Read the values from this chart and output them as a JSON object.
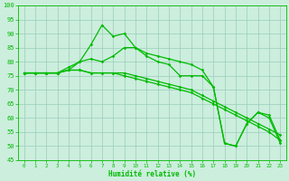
{
  "xlabel": "Humidité relative (%)",
  "background_color": "#cceedd",
  "grid_color": "#99ccbb",
  "line_color": "#00bb00",
  "xlim": [
    -0.5,
    23.5
  ],
  "ylim": [
    45,
    100
  ],
  "yticks": [
    45,
    50,
    55,
    60,
    65,
    70,
    75,
    80,
    85,
    90,
    95,
    100
  ],
  "xticks": [
    0,
    1,
    2,
    3,
    4,
    5,
    6,
    7,
    8,
    9,
    10,
    11,
    12,
    13,
    14,
    15,
    16,
    17,
    18,
    19,
    20,
    21,
    22,
    23
  ],
  "series1": [
    76,
    76,
    76,
    76,
    77,
    80,
    86,
    93,
    89,
    90,
    85,
    82,
    80,
    79,
    75,
    75,
    75,
    71,
    51,
    50,
    58,
    62,
    61,
    52
  ],
  "series2": [
    76,
    76,
    76,
    76,
    77,
    77,
    76,
    76,
    76,
    76,
    75,
    74,
    73,
    72,
    71,
    70,
    68,
    66,
    64,
    62,
    60,
    58,
    56,
    54
  ],
  "series3": [
    76,
    76,
    76,
    76,
    77,
    77,
    76,
    76,
    76,
    75,
    74,
    73,
    72,
    71,
    70,
    69,
    67,
    65,
    63,
    61,
    59,
    57,
    55,
    52
  ],
  "series4": [
    76,
    76,
    76,
    76,
    78,
    80,
    81,
    80,
    82,
    85,
    85,
    83,
    82,
    81,
    80,
    79,
    77,
    71,
    51,
    50,
    58,
    62,
    60,
    51
  ]
}
